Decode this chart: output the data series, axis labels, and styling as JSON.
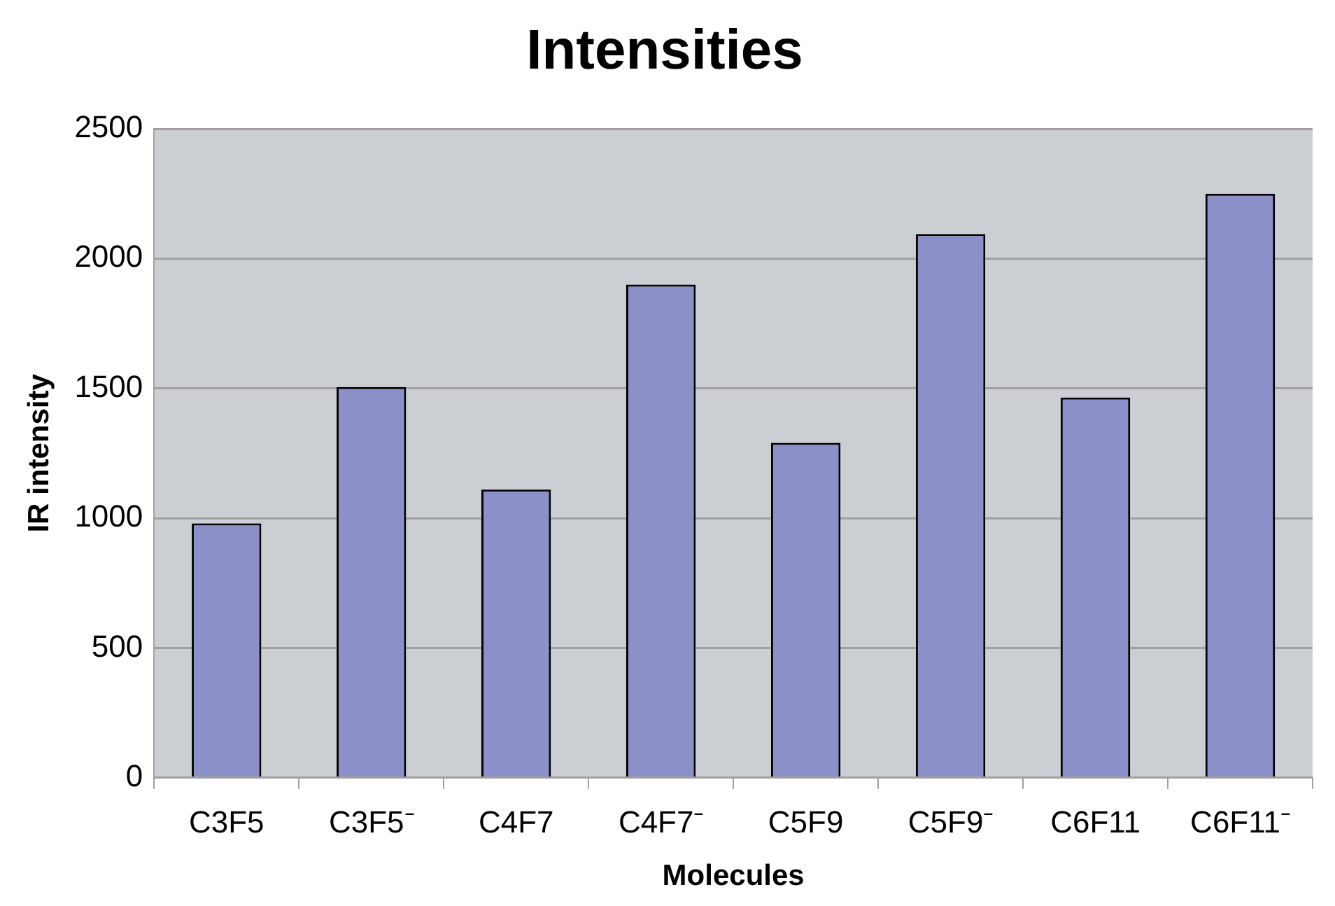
{
  "chart_data": {
    "type": "bar",
    "title": "Intensities",
    "xlabel": "Molecules",
    "ylabel": "IR intensity",
    "categories": [
      "C3F5",
      "C3F5⁻",
      "C4F7",
      "C4F7⁻",
      "C5F9",
      "C5F9⁻",
      "C6F11",
      "C6F11⁻"
    ],
    "values": [
      980,
      1505,
      1110,
      1900,
      1290,
      2095,
      1465,
      2250
    ],
    "color": "#8b91c8",
    "ylim": [
      0,
      2500
    ],
    "yticks": [
      0,
      500,
      1000,
      1500,
      2000,
      2500
    ],
    "grid": "y",
    "legend": false
  }
}
